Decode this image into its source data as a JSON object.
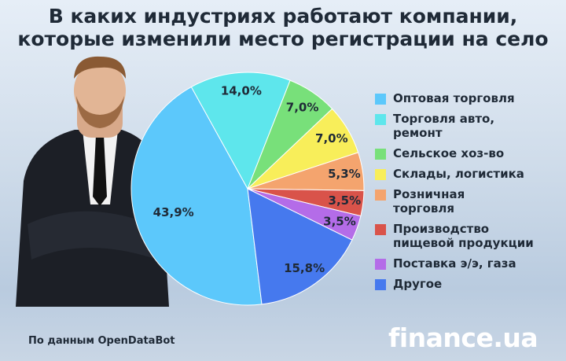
{
  "chart_data": {
    "type": "pie",
    "title": "В каких индустриях работают компании,\nкоторые изменили место регистрации на село",
    "categories": [
      "Оптовая торговля",
      "Торговля авто,\nремонт",
      "Сельское хоз-во",
      "Склады, логистика",
      "Розничная\nторговля",
      "Производство\nпищевой продукции",
      "Поставка э/э, газа",
      "Другое"
    ],
    "values": [
      43.9,
      14.0,
      7.0,
      7.0,
      5.3,
      3.5,
      3.5,
      15.8
    ],
    "value_labels": [
      "43,9%",
      "14,0%",
      "7,0%",
      "7,0%",
      "5,3%",
      "3,5%",
      "3,5%",
      "15,8%"
    ],
    "colors": [
      "#5cc8fb",
      "#5ee6ec",
      "#78e07a",
      "#f8ee5a",
      "#f4a46e",
      "#d9534a",
      "#b46ce8",
      "#4679ee"
    ],
    "legend": "right",
    "source": "По данным OpenDataBot",
    "logo": "finance.ua"
  }
}
